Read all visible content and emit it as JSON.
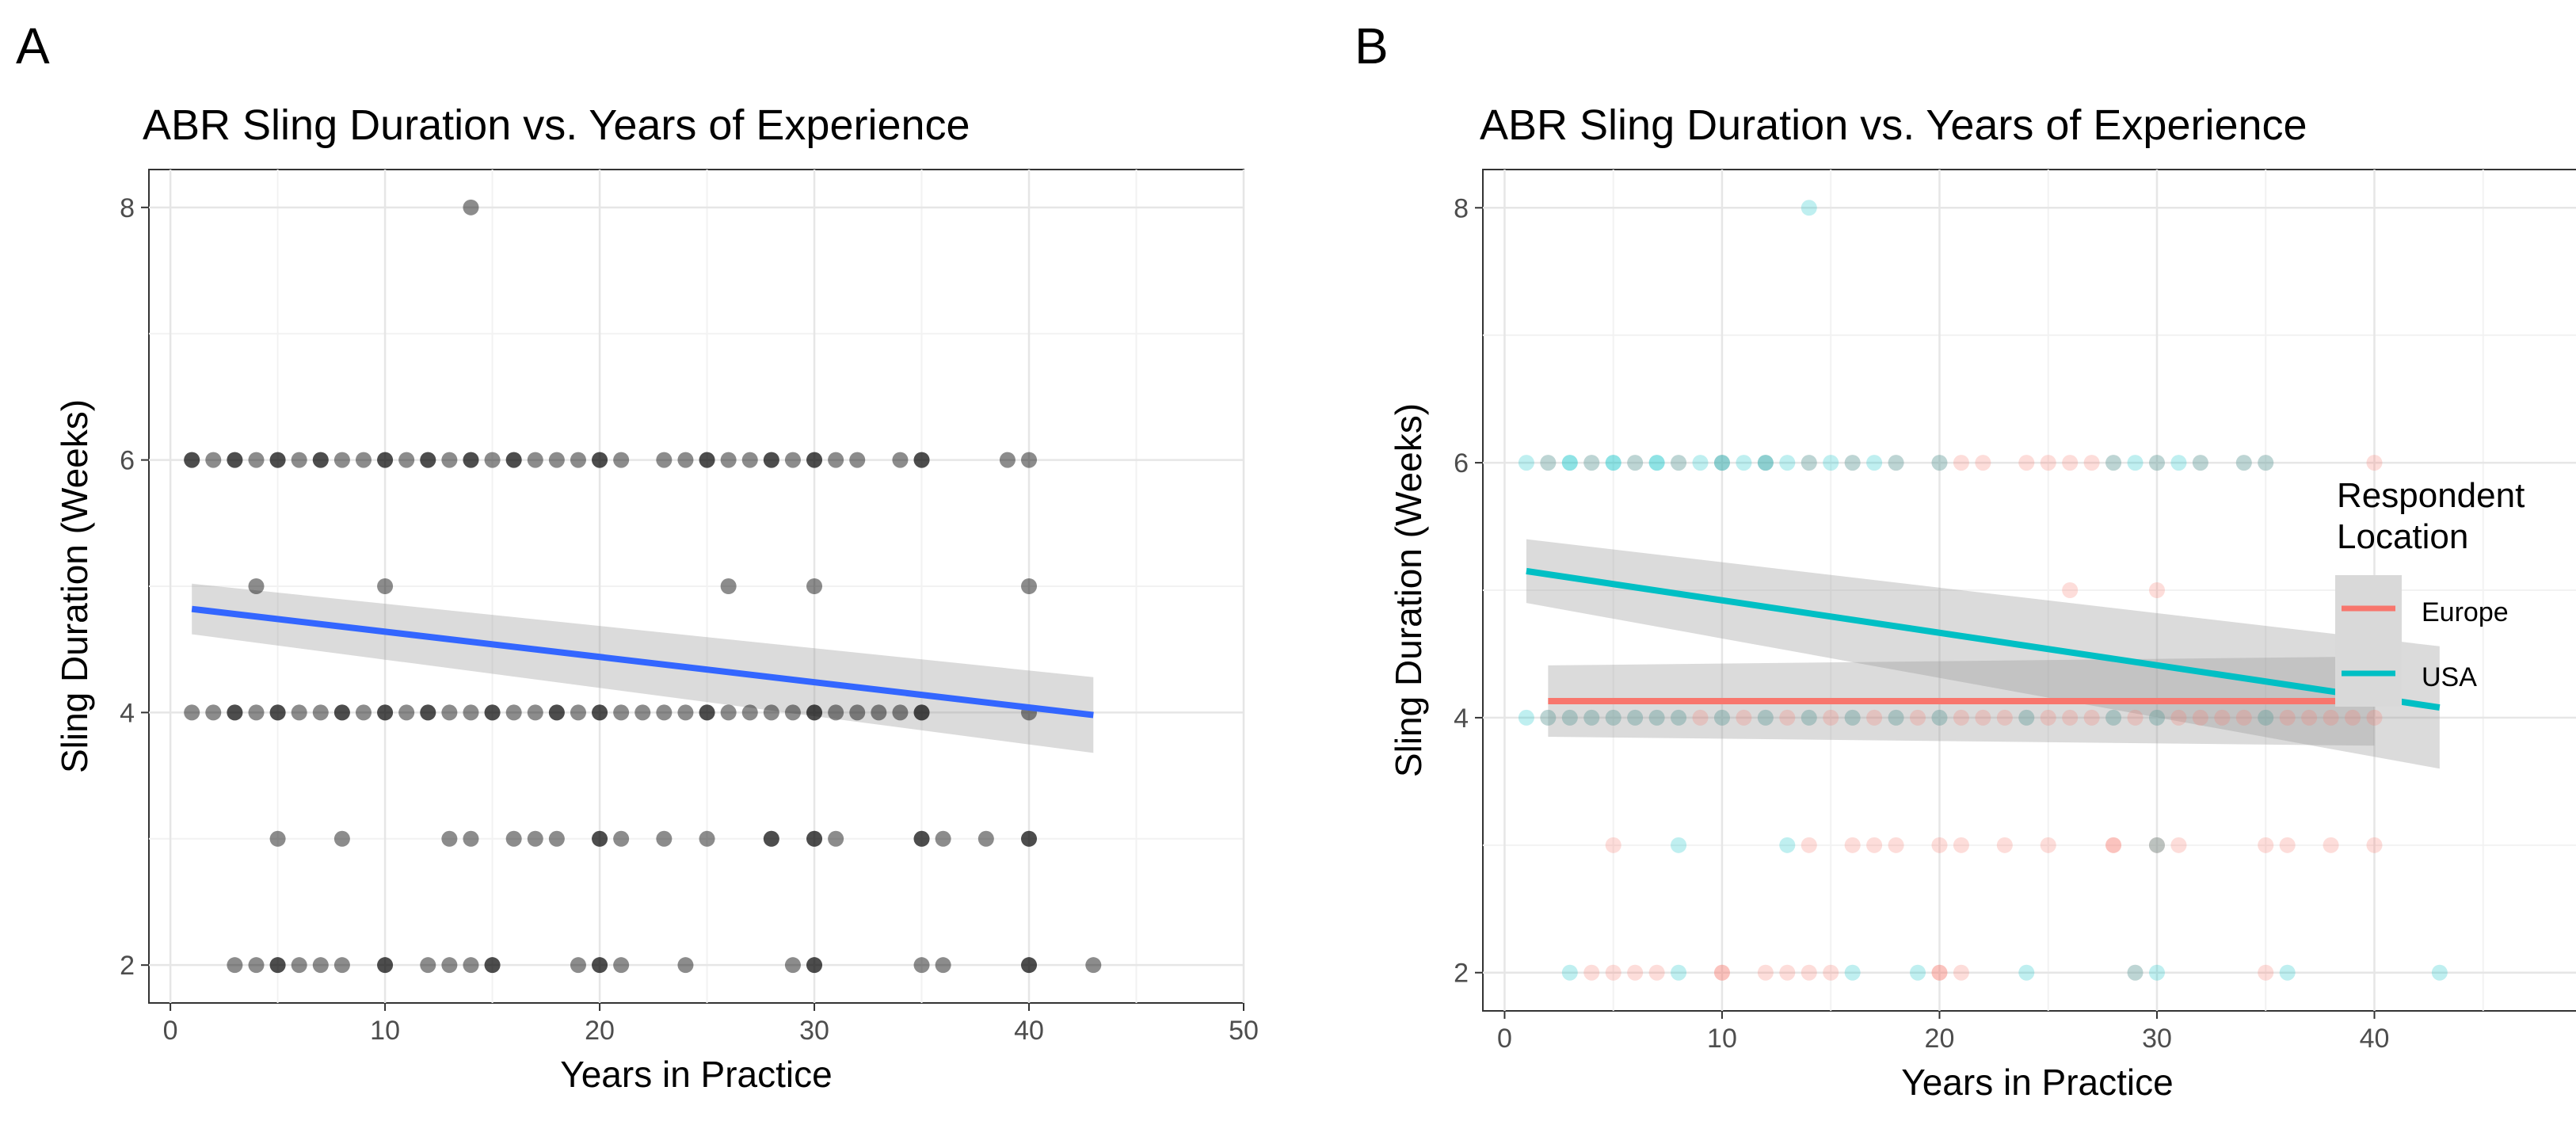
{
  "chart_data": [
    {
      "panel": "A",
      "type": "scatter",
      "title": "ABR Sling Duration vs. Years of Experience",
      "xlabel": "Years in Practice",
      "ylabel": "Sling Duration (Weeks)",
      "xlim": [
        -1,
        50
      ],
      "ylim": [
        1.7,
        8.3
      ],
      "xticks": [
        0,
        10,
        20,
        30,
        40,
        50
      ],
      "yticks": [
        2,
        4,
        6,
        8
      ],
      "grid": true,
      "point_color": "#000000",
      "point_opacity": 0.45,
      "points": [
        [
          1,
          6
        ],
        [
          2,
          6
        ],
        [
          3,
          6
        ],
        [
          4,
          6
        ],
        [
          5,
          6
        ],
        [
          6,
          6
        ],
        [
          7,
          6
        ],
        [
          8,
          6
        ],
        [
          9,
          6
        ],
        [
          10,
          6
        ],
        [
          11,
          6
        ],
        [
          12,
          6
        ],
        [
          13,
          6
        ],
        [
          14,
          6
        ],
        [
          15,
          6
        ],
        [
          16,
          6
        ],
        [
          17,
          6
        ],
        [
          18,
          6
        ],
        [
          19,
          6
        ],
        [
          20,
          6
        ],
        [
          21,
          6
        ],
        [
          23,
          6
        ],
        [
          24,
          6
        ],
        [
          25,
          6
        ],
        [
          26,
          6
        ],
        [
          27,
          6
        ],
        [
          28,
          6
        ],
        [
          29,
          6
        ],
        [
          30,
          6
        ],
        [
          31,
          6
        ],
        [
          32,
          6
        ],
        [
          34,
          6
        ],
        [
          35,
          6
        ],
        [
          39,
          6
        ],
        [
          40,
          6
        ],
        [
          1,
          6
        ],
        [
          3,
          6
        ],
        [
          5,
          6
        ],
        [
          7,
          6
        ],
        [
          10,
          6
        ],
        [
          12,
          6
        ],
        [
          14,
          6
        ],
        [
          16,
          6
        ],
        [
          20,
          6
        ],
        [
          25,
          6
        ],
        [
          28,
          6
        ],
        [
          30,
          6
        ],
        [
          35,
          6
        ],
        [
          4,
          5
        ],
        [
          10,
          5
        ],
        [
          26,
          5
        ],
        [
          30,
          5
        ],
        [
          40,
          5
        ],
        [
          1,
          4
        ],
        [
          2,
          4
        ],
        [
          3,
          4
        ],
        [
          4,
          4
        ],
        [
          5,
          4
        ],
        [
          6,
          4
        ],
        [
          7,
          4
        ],
        [
          8,
          4
        ],
        [
          9,
          4
        ],
        [
          10,
          4
        ],
        [
          11,
          4
        ],
        [
          12,
          4
        ],
        [
          13,
          4
        ],
        [
          14,
          4
        ],
        [
          15,
          4
        ],
        [
          16,
          4
        ],
        [
          17,
          4
        ],
        [
          18,
          4
        ],
        [
          19,
          4
        ],
        [
          20,
          4
        ],
        [
          21,
          4
        ],
        [
          22,
          4
        ],
        [
          23,
          4
        ],
        [
          24,
          4
        ],
        [
          25,
          4
        ],
        [
          26,
          4
        ],
        [
          27,
          4
        ],
        [
          28,
          4
        ],
        [
          29,
          4
        ],
        [
          30,
          4
        ],
        [
          31,
          4
        ],
        [
          32,
          4
        ],
        [
          33,
          4
        ],
        [
          34,
          4
        ],
        [
          35,
          4
        ],
        [
          40,
          4
        ],
        [
          3,
          4
        ],
        [
          5,
          4
        ],
        [
          8,
          4
        ],
        [
          10,
          4
        ],
        [
          12,
          4
        ],
        [
          15,
          4
        ],
        [
          18,
          4
        ],
        [
          20,
          4
        ],
        [
          25,
          4
        ],
        [
          30,
          4
        ],
        [
          35,
          4
        ],
        [
          5,
          3
        ],
        [
          8,
          3
        ],
        [
          13,
          3
        ],
        [
          14,
          3
        ],
        [
          16,
          3
        ],
        [
          17,
          3
        ],
        [
          18,
          3
        ],
        [
          20,
          3
        ],
        [
          21,
          3
        ],
        [
          23,
          3
        ],
        [
          25,
          3
        ],
        [
          28,
          3
        ],
        [
          30,
          3
        ],
        [
          31,
          3
        ],
        [
          35,
          3
        ],
        [
          36,
          3
        ],
        [
          38,
          3
        ],
        [
          40,
          3
        ],
        [
          20,
          3
        ],
        [
          28,
          3
        ],
        [
          30,
          3
        ],
        [
          35,
          3
        ],
        [
          40,
          3
        ],
        [
          3,
          2
        ],
        [
          4,
          2
        ],
        [
          5,
          2
        ],
        [
          6,
          2
        ],
        [
          7,
          2
        ],
        [
          8,
          2
        ],
        [
          10,
          2
        ],
        [
          12,
          2
        ],
        [
          13,
          2
        ],
        [
          14,
          2
        ],
        [
          15,
          2
        ],
        [
          19,
          2
        ],
        [
          20,
          2
        ],
        [
          21,
          2
        ],
        [
          24,
          2
        ],
        [
          29,
          2
        ],
        [
          30,
          2
        ],
        [
          35,
          2
        ],
        [
          36,
          2
        ],
        [
          40,
          2
        ],
        [
          43,
          2
        ],
        [
          5,
          2
        ],
        [
          10,
          2
        ],
        [
          15,
          2
        ],
        [
          20,
          2
        ],
        [
          30,
          2
        ],
        [
          40,
          2
        ],
        [
          14,
          8
        ]
      ],
      "fit_lines": [
        {
          "name": "Linear fit",
          "color": "#3366ff",
          "x": [
            1,
            43
          ],
          "y": [
            4.82,
            3.98
          ],
          "ci_lower": [
            4.62,
            3.68
          ],
          "ci_upper": [
            5.02,
            4.28
          ]
        }
      ]
    },
    {
      "panel": "B",
      "type": "scatter",
      "title": "ABR Sling Duration vs. Years of Experience",
      "xlabel": "Years in Practice",
      "ylabel": "Sling Duration (Weeks)",
      "xlim": [
        -1,
        50
      ],
      "ylim": [
        1.7,
        8.3
      ],
      "xticks": [
        0,
        10,
        20,
        30,
        40,
        50
      ],
      "yticks": [
        2,
        4,
        6,
        8
      ],
      "grid": true,
      "legend": {
        "title": "Respondent Location",
        "title_lines": [
          "Respondent",
          "Location"
        ],
        "position": "right",
        "entries": [
          {
            "label": "Europe",
            "color": "#f8766d"
          },
          {
            "label": "USA",
            "color": "#00bfc4"
          }
        ]
      },
      "point_opacity": 0.25,
      "series": [
        {
          "name": "Europe",
          "color": "#f8766d",
          "points": [
            [
              2,
              6
            ],
            [
              4,
              6
            ],
            [
              6,
              6
            ],
            [
              8,
              6
            ],
            [
              10,
              6
            ],
            [
              12,
              6
            ],
            [
              14,
              6
            ],
            [
              16,
              6
            ],
            [
              18,
              6
            ],
            [
              20,
              6
            ],
            [
              21,
              6
            ],
            [
              22,
              6
            ],
            [
              24,
              6
            ],
            [
              25,
              6
            ],
            [
              26,
              6
            ],
            [
              27,
              6
            ],
            [
              28,
              6
            ],
            [
              30,
              6
            ],
            [
              32,
              6
            ],
            [
              34,
              6
            ],
            [
              35,
              6
            ],
            [
              40,
              6
            ],
            [
              26,
              5
            ],
            [
              30,
              5
            ],
            [
              40,
              5
            ],
            [
              2,
              4
            ],
            [
              3,
              4
            ],
            [
              4,
              4
            ],
            [
              5,
              4
            ],
            [
              6,
              4
            ],
            [
              7,
              4
            ],
            [
              8,
              4
            ],
            [
              9,
              4
            ],
            [
              10,
              4
            ],
            [
              11,
              4
            ],
            [
              12,
              4
            ],
            [
              13,
              4
            ],
            [
              14,
              4
            ],
            [
              15,
              4
            ],
            [
              16,
              4
            ],
            [
              17,
              4
            ],
            [
              18,
              4
            ],
            [
              19,
              4
            ],
            [
              20,
              4
            ],
            [
              21,
              4
            ],
            [
              22,
              4
            ],
            [
              23,
              4
            ],
            [
              24,
              4
            ],
            [
              25,
              4
            ],
            [
              26,
              4
            ],
            [
              27,
              4
            ],
            [
              28,
              4
            ],
            [
              29,
              4
            ],
            [
              30,
              4
            ],
            [
              31,
              4
            ],
            [
              32,
              4
            ],
            [
              33,
              4
            ],
            [
              34,
              4
            ],
            [
              35,
              4
            ],
            [
              36,
              4
            ],
            [
              37,
              4
            ],
            [
              38,
              4
            ],
            [
              39,
              4
            ],
            [
              40,
              4
            ],
            [
              5,
              3
            ],
            [
              14,
              3
            ],
            [
              16,
              3
            ],
            [
              17,
              3
            ],
            [
              18,
              3
            ],
            [
              20,
              3
            ],
            [
              21,
              3
            ],
            [
              23,
              3
            ],
            [
              25,
              3
            ],
            [
              28,
              3
            ],
            [
              30,
              3
            ],
            [
              31,
              3
            ],
            [
              35,
              3
            ],
            [
              36,
              3
            ],
            [
              38,
              3
            ],
            [
              40,
              3
            ],
            [
              28,
              3
            ],
            [
              30,
              3
            ],
            [
              4,
              2
            ],
            [
              5,
              2
            ],
            [
              6,
              2
            ],
            [
              7,
              2
            ],
            [
              10,
              2
            ],
            [
              12,
              2
            ],
            [
              13,
              2
            ],
            [
              14,
              2
            ],
            [
              15,
              2
            ],
            [
              20,
              2
            ],
            [
              21,
              2
            ],
            [
              29,
              2
            ],
            [
              35,
              2
            ],
            [
              10,
              2
            ],
            [
              20,
              2
            ]
          ],
          "fit": {
            "x": [
              2,
              40
            ],
            "y": [
              4.13,
              4.13
            ],
            "ci_lower": [
              3.85,
              3.78
            ],
            "ci_upper": [
              4.41,
              4.48
            ]
          }
        },
        {
          "name": "USA",
          "color": "#00bfc4",
          "points": [
            [
              1,
              6
            ],
            [
              2,
              6
            ],
            [
              3,
              6
            ],
            [
              4,
              6
            ],
            [
              5,
              6
            ],
            [
              6,
              6
            ],
            [
              7,
              6
            ],
            [
              8,
              6
            ],
            [
              9,
              6
            ],
            [
              10,
              6
            ],
            [
              11,
              6
            ],
            [
              12,
              6
            ],
            [
              13,
              6
            ],
            [
              14,
              6
            ],
            [
              15,
              6
            ],
            [
              16,
              6
            ],
            [
              17,
              6
            ],
            [
              18,
              6
            ],
            [
              20,
              6
            ],
            [
              28,
              6
            ],
            [
              29,
              6
            ],
            [
              30,
              6
            ],
            [
              31,
              6
            ],
            [
              32,
              6
            ],
            [
              34,
              6
            ],
            [
              35,
              6
            ],
            [
              3,
              6
            ],
            [
              5,
              6
            ],
            [
              7,
              6
            ],
            [
              10,
              6
            ],
            [
              12,
              6
            ],
            [
              1,
              4
            ],
            [
              2,
              4
            ],
            [
              3,
              4
            ],
            [
              4,
              4
            ],
            [
              5,
              4
            ],
            [
              6,
              4
            ],
            [
              7,
              4
            ],
            [
              8,
              4
            ],
            [
              10,
              4
            ],
            [
              12,
              4
            ],
            [
              14,
              4
            ],
            [
              16,
              4
            ],
            [
              18,
              4
            ],
            [
              20,
              4
            ],
            [
              24,
              4
            ],
            [
              28,
              4
            ],
            [
              30,
              4
            ],
            [
              35,
              4
            ],
            [
              8,
              3
            ],
            [
              13,
              3
            ],
            [
              30,
              3
            ],
            [
              3,
              2
            ],
            [
              8,
              2
            ],
            [
              16,
              2
            ],
            [
              19,
              2
            ],
            [
              24,
              2
            ],
            [
              29,
              2
            ],
            [
              30,
              2
            ],
            [
              36,
              2
            ],
            [
              43,
              2
            ],
            [
              14,
              8
            ]
          ],
          "fit": {
            "x": [
              1,
              43
            ],
            "y": [
              5.15,
              4.08
            ],
            "ci_lower": [
              4.9,
              3.6
            ],
            "ci_upper": [
              5.4,
              4.56
            ]
          }
        }
      ]
    }
  ]
}
